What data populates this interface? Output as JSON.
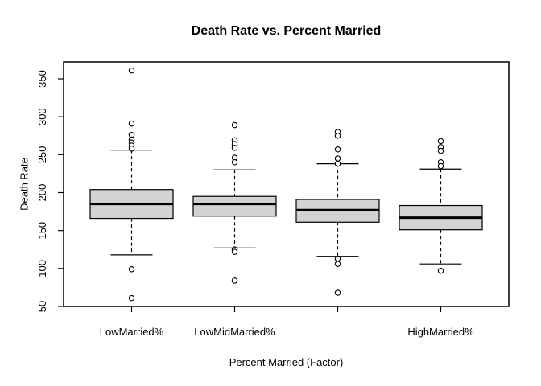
{
  "page": {
    "background": "#ffffff"
  },
  "chart_data": {
    "type": "boxplot",
    "title": "Death Rate vs. Percent Married",
    "xlabel": "Percent Married (Factor)",
    "ylabel": "Death Rate",
    "ylim": [
      50,
      350
    ],
    "yticks": [
      50,
      100,
      150,
      200,
      250,
      300,
      350
    ],
    "categories": [
      "LowMarried%",
      "LowMidMarried%",
      "",
      "HighMarried%"
    ],
    "grid": false,
    "legend": "none",
    "colors": {
      "box_fill": "#d3d3d3",
      "stroke": "#000000",
      "outlier_fill": "#ffffff",
      "background": "#ffffff"
    },
    "series": [
      {
        "label": "LowMarried%",
        "whisker_low": 118,
        "q1": 166,
        "median": 185,
        "q3": 204,
        "whisker_high": 256,
        "outliers": [
          361,
          291,
          276,
          270,
          266,
          262,
          258,
          99,
          61
        ]
      },
      {
        "label": "LowMidMarried%",
        "whisker_low": 127,
        "q1": 169,
        "median": 185,
        "q3": 195,
        "whisker_high": 230,
        "outliers": [
          289,
          269,
          264,
          259,
          246,
          240,
          125,
          122,
          84
        ]
      },
      {
        "label": "",
        "whisker_low": 116,
        "q1": 161,
        "median": 177,
        "q3": 191,
        "whisker_high": 238,
        "outliers": [
          280,
          275,
          257,
          245,
          238,
          113,
          106,
          68
        ]
      },
      {
        "label": "HighMarried%",
        "whisker_low": 106,
        "q1": 151,
        "median": 167,
        "q3": 183,
        "whisker_high": 231,
        "outliers": [
          268,
          260,
          255,
          240,
          235,
          97
        ]
      }
    ]
  }
}
